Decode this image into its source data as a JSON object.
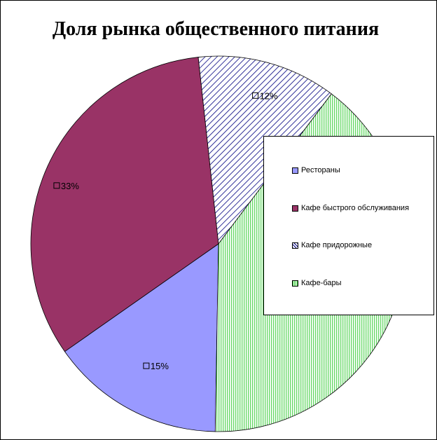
{
  "chart_data": {
    "type": "pie",
    "title": "Доля рынка общественного питания",
    "categories": [
      "Рестораны",
      "Кафе быстрого обслуживания",
      "Кафе придорожные",
      "Кафе-бары"
    ],
    "values": [
      15,
      33,
      12,
      40
    ],
    "data_labels": [
      "15%",
      "33%",
      "12%",
      ""
    ],
    "colors": [
      "#9999ff",
      "#993366",
      "#000080",
      "#33cc33"
    ],
    "patterns": [
      "solid",
      "solid",
      "diagonal-hatch",
      "vertical-stripes"
    ],
    "legend": {
      "position": "right",
      "entries": [
        "Рестораны",
        "Кафе быстрого обслуживания",
        "Кафе придорожные",
        "Кафе-бары"
      ]
    }
  }
}
